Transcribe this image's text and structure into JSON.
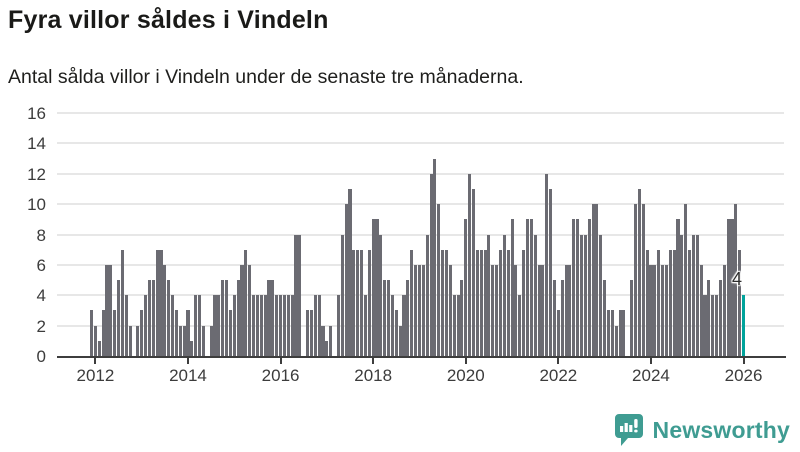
{
  "header": {
    "title": "Fyra villor såldes i Vindeln",
    "subtitle": "Antal sålda villor i Vindeln under de senaste tre månaderna."
  },
  "chart_data": {
    "type": "bar",
    "title": "Fyra villor såldes i Vindeln",
    "subtitle": "Antal sålda villor i Vindeln under de senaste tre månaderna.",
    "xlabel": "",
    "ylabel": "",
    "start_month": "2011-12",
    "end_month": "2026-01",
    "values": [
      3,
      2,
      1,
      3,
      6,
      6,
      3,
      5,
      7,
      4,
      2,
      0,
      2,
      3,
      4,
      5,
      5,
      7,
      7,
      6,
      5,
      4,
      3,
      2,
      2,
      3,
      1,
      4,
      4,
      2,
      0,
      2,
      4,
      4,
      5,
      5,
      3,
      4,
      5,
      6,
      7,
      6,
      4,
      4,
      4,
      4,
      5,
      5,
      4,
      4,
      4,
      4,
      4,
      8,
      8,
      0,
      3,
      3,
      4,
      4,
      2,
      1,
      2,
      0,
      4,
      8,
      10,
      11,
      7,
      7,
      7,
      4,
      7,
      9,
      9,
      8,
      5,
      5,
      4,
      3,
      2,
      4,
      5,
      7,
      6,
      6,
      6,
      8,
      12,
      13,
      10,
      7,
      7,
      6,
      4,
      4,
      5,
      9,
      12,
      11,
      7,
      7,
      7,
      8,
      6,
      6,
      7,
      8,
      7,
      9,
      6,
      4,
      7,
      9,
      9,
      8,
      6,
      6,
      12,
      11,
      5,
      3,
      5,
      6,
      6,
      9,
      9,
      8,
      8,
      9,
      10,
      10,
      8,
      5,
      3,
      3,
      2,
      3,
      3,
      0,
      5,
      10,
      11,
      10,
      7,
      6,
      6,
      7,
      6,
      6,
      7,
      7,
      9,
      8,
      10,
      7,
      8,
      8,
      6,
      4,
      5,
      4,
      4,
      5,
      6,
      9,
      9,
      10,
      7,
      4
    ],
    "highlight_last": true,
    "highlight_value": 4,
    "highlight_label": "4",
    "ylim": [
      0,
      16
    ],
    "yticks": [
      0,
      2,
      4,
      6,
      8,
      10,
      12,
      14,
      16
    ],
    "xticks": [
      2012,
      2014,
      2016,
      2018,
      2020,
      2022,
      2024,
      2026
    ],
    "grid": true,
    "legend": "none",
    "bar_color": "#6b6b72",
    "highlight_color": "#00a39b",
    "grid_color": "#e7e7e7",
    "axis_color": "#3d3d3d"
  },
  "footer": {
    "brand": "Newsworthy",
    "logo_icon": "bar-chart-speech-bubble-icon",
    "brand_color": "#3f9c92"
  }
}
